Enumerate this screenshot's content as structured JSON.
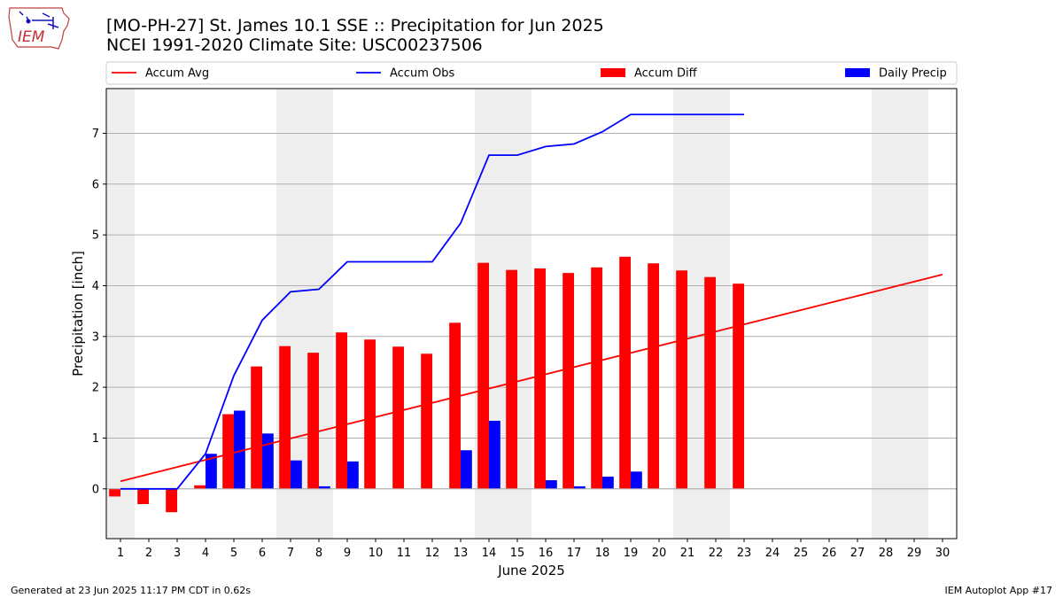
{
  "header": {
    "title": "[MO-PH-27] St. James 10.1 SSE :: Precipitation for Jun 2025",
    "subtitle": "NCEI 1991-2020 Climate Site: USC00237506",
    "logo_text": "IEM"
  },
  "footer": {
    "left": "Generated at 23 Jun 2025 11:17 PM CDT in 0.62s",
    "right": "IEM Autoplot App #17"
  },
  "colors": {
    "accum_avg": "#ff0000",
    "accum_obs": "#0000ff",
    "accum_diff": "#ff0000",
    "daily_precip": "#0000ff",
    "weekend_shade": "#eeeeee",
    "grid": "#b0b0b0"
  },
  "chart_data": {
    "type": "bar",
    "xlabel": "June 2025",
    "ylabel": "Precipitation [inch]",
    "xlim": [
      0.5,
      30.5
    ],
    "ylim": [
      -0.98,
      7.88
    ],
    "y_ticks": [
      0,
      1,
      2,
      3,
      4,
      5,
      6,
      7
    ],
    "grid": "horizontal",
    "legend_placement": "top",
    "weekend_shading": [
      [
        0.5,
        1.5
      ],
      [
        6.5,
        8.5
      ],
      [
        13.5,
        15.5
      ],
      [
        20.5,
        22.5
      ],
      [
        27.5,
        29.5
      ]
    ],
    "days": [
      1,
      2,
      3,
      4,
      5,
      6,
      7,
      8,
      9,
      10,
      11,
      12,
      13,
      14,
      15,
      16,
      17,
      18,
      19,
      20,
      21,
      22,
      23,
      24,
      25,
      26,
      27,
      28,
      29,
      30
    ],
    "series": [
      {
        "name": "Accum Avg",
        "kind": "line",
        "x": [
          1,
          30
        ],
        "values": [
          0.15,
          4.22
        ]
      },
      {
        "name": "Accum Obs",
        "kind": "line",
        "x": [
          1,
          2,
          3,
          4,
          5,
          6,
          7,
          8,
          9,
          10,
          11,
          12,
          13,
          14,
          15,
          16,
          17,
          18,
          19,
          20,
          21,
          22,
          23
        ],
        "values": [
          0.0,
          0.0,
          0.0,
          0.69,
          2.23,
          3.32,
          3.88,
          3.93,
          4.47,
          4.47,
          4.47,
          4.47,
          5.23,
          6.57,
          6.57,
          6.74,
          6.79,
          7.03,
          7.37,
          7.37,
          7.37,
          7.37,
          7.37
        ]
      },
      {
        "name": "Accum Diff",
        "kind": "bar",
        "x": [
          1,
          2,
          3,
          4,
          5,
          6,
          7,
          8,
          9,
          10,
          11,
          12,
          13,
          14,
          15,
          16,
          17,
          18,
          19,
          20,
          21,
          22,
          23
        ],
        "values": [
          -0.15,
          -0.3,
          -0.46,
          0.07,
          1.47,
          2.41,
          2.81,
          2.68,
          3.08,
          2.94,
          2.8,
          2.66,
          3.27,
          4.45,
          4.31,
          4.34,
          4.25,
          4.36,
          4.57,
          4.44,
          4.3,
          4.17,
          4.04
        ]
      },
      {
        "name": "Daily Precip",
        "kind": "bar",
        "x": [
          4,
          5,
          6,
          7,
          8,
          9,
          13,
          14,
          16,
          17,
          18,
          19
        ],
        "values": [
          0.69,
          1.54,
          1.09,
          0.56,
          0.05,
          0.54,
          0.76,
          1.34,
          0.17,
          0.05,
          0.24,
          0.34
        ]
      }
    ]
  }
}
